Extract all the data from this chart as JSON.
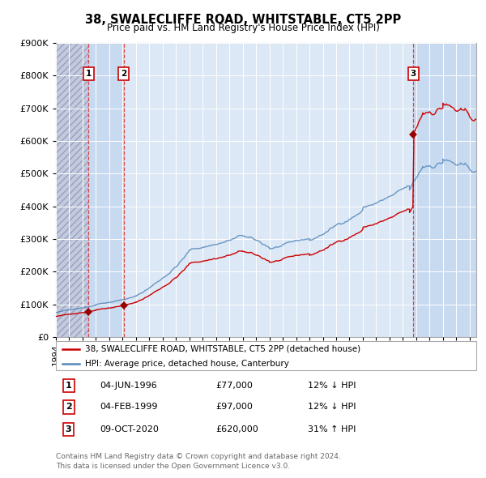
{
  "title": "38, SWALECLIFFE ROAD, WHITSTABLE, CT5 2PP",
  "subtitle": "Price paid vs. HM Land Registry's House Price Index (HPI)",
  "legend_line1": "38, SWALECLIFFE ROAD, WHITSTABLE, CT5 2PP (detached house)",
  "legend_line2": "HPI: Average price, detached house, Canterbury",
  "footer1": "Contains HM Land Registry data © Crown copyright and database right 2024.",
  "footer2": "This data is licensed under the Open Government Licence v3.0.",
  "transactions": [
    {
      "num": 1,
      "date": "04-JUN-1996",
      "price": 77000,
      "pct": "12%",
      "dir": "↓",
      "year": 1996.44
    },
    {
      "num": 2,
      "date": "04-FEB-1999",
      "price": 97000,
      "pct": "12%",
      "dir": "↓",
      "year": 1999.09
    },
    {
      "num": 3,
      "date": "09-OCT-2020",
      "price": 620000,
      "pct": "31%",
      "dir": "↑",
      "year": 2020.77
    }
  ],
  "xlim": [
    1994.0,
    2025.5
  ],
  "ylim": [
    0,
    900000
  ],
  "yticks": [
    0,
    100000,
    200000,
    300000,
    400000,
    500000,
    600000,
    700000,
    800000,
    900000
  ],
  "xticks": [
    1994,
    1995,
    1996,
    1997,
    1998,
    1999,
    2000,
    2001,
    2002,
    2003,
    2004,
    2005,
    2006,
    2007,
    2008,
    2009,
    2010,
    2011,
    2012,
    2013,
    2014,
    2015,
    2016,
    2017,
    2018,
    2019,
    2020,
    2021,
    2022,
    2023,
    2024,
    2025
  ],
  "hatch_end_year": 1996.44,
  "sale1_year": 1996.44,
  "sale2_year": 1999.09,
  "sale3_year": 2020.77,
  "highlight1_start": 1996.44,
  "highlight1_end": 1999.09,
  "highlight2_start": 2020.77,
  "highlight2_end": 2025.5,
  "red_line": "#cc0000",
  "blue_line": "#5588bb",
  "bg_plot": "#dce8f5",
  "bg_highlight": "#c8daf0",
  "bg_hatch": "#c0c8dc",
  "dashed_red": "#dd3333",
  "marker_color": "#990000",
  "box_color": "#cc0000",
  "grid_color": "#ffffff"
}
